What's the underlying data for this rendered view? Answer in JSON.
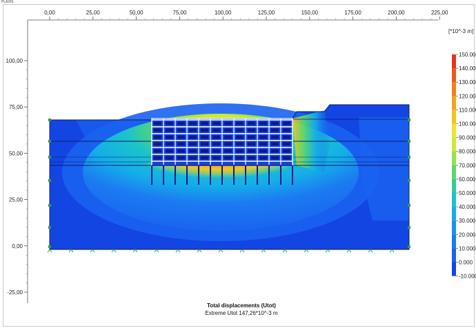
{
  "window": {
    "title": "PLAXIS"
  },
  "axes": {
    "x_ticks": [
      "0,00",
      "25,00",
      "50,00",
      "75,00",
      "100,00",
      "125,00",
      "150,00",
      "175,00",
      "200,00",
      "225,00"
    ],
    "y_ticks": [
      "100,00",
      "75,00",
      "50,00",
      "25,00",
      "0,00",
      "-25,00"
    ]
  },
  "legend": {
    "unit": "[*10^-3 m]",
    "labels": [
      "150.000",
      "140.000",
      "130.000",
      "120.000",
      "110.000",
      "100.000",
      "90.000",
      "80.000",
      "70.000",
      "60.000",
      "50.000",
      "40.000",
      "30.000",
      "20.000",
      "10.000",
      "0.000",
      "-10.000"
    ],
    "colors": [
      "#e8321e",
      "#f0561c",
      "#f77d18",
      "#f4a21a",
      "#f2c51f",
      "#eee52a",
      "#c8ec34",
      "#93e24a",
      "#5cd86b",
      "#33cc9a",
      "#1cc3c9",
      "#14aee8",
      "#1793ef",
      "#1b7bf1",
      "#1a62ef",
      "#1345e3",
      "#0b27c9"
    ]
  },
  "caption": {
    "title": "Total displacements (Utot)",
    "extreme": "Extreme Utot 147,26*10^-3 m"
  },
  "colors": {
    "model_base": "#1345e3",
    "structure": "#0d1b8a",
    "window_bg": "#ffffff"
  }
}
